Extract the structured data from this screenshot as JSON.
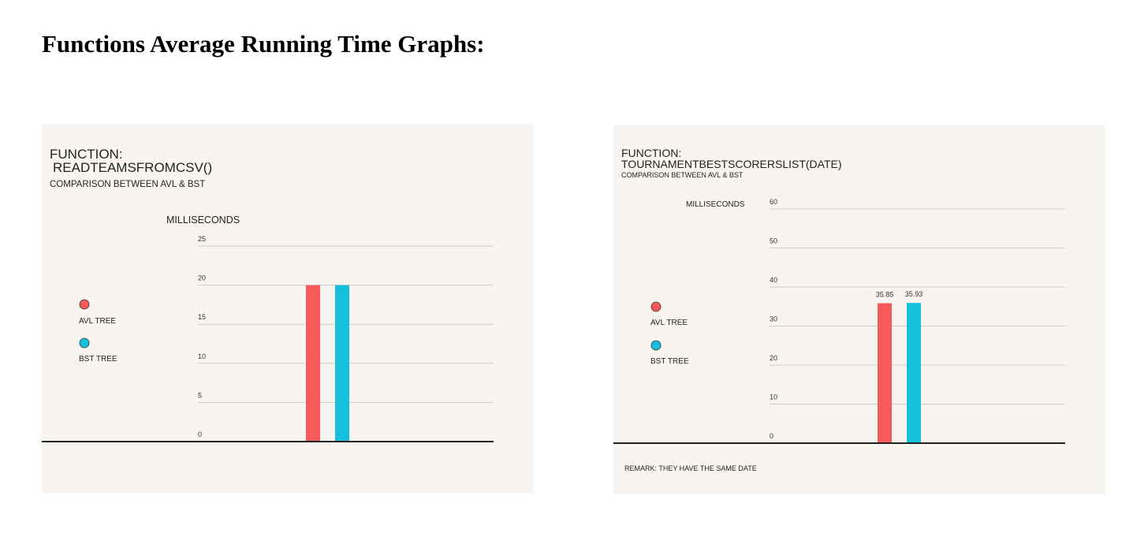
{
  "page": {
    "title": "Functions Average Running Time Graphs:"
  },
  "charts": [
    {
      "title_line1": "FUNCTION:",
      "title_line2": "READTEAMSFROMCSV()",
      "subtitle": "COMPARISON BETWEEN AVL & BST",
      "ylabel": "MILLISECONDS",
      "legend": [
        "AVL TREE",
        "BST TREE"
      ],
      "remark": ""
    },
    {
      "title_line1": "FUNCTION:",
      "title_line2": "TOURNAMENTBESTSCORERSLIST(DATE)",
      "subtitle": "COMPARISON BETWEEN AVL & BST",
      "ylabel": "MILLISECONDS",
      "legend": [
        "AVL TREE",
        "BST TREE"
      ],
      "remark": "REMARK: THEY HAVE THE  SAME DATE"
    }
  ],
  "colors": {
    "avl": "#f75a5a",
    "bst": "#16c0dd",
    "panel_bg": "#f8f5f0",
    "grid": "#d0ccc6",
    "axis": "#222222"
  },
  "chart_data": [
    {
      "type": "bar",
      "title": "FUNCTION: READTEAMSFROMCSV()",
      "subtitle": "COMPARISON BETWEEN AVL & BST",
      "ylabel": "MILLISECONDS",
      "ylim": [
        0,
        25
      ],
      "yticks": [
        0,
        5,
        10,
        15,
        20,
        25
      ],
      "categories": [
        "AVL TREE",
        "BST TREE"
      ],
      "values": [
        20,
        20
      ],
      "data_labels": false,
      "grid": true,
      "legend_position": "left"
    },
    {
      "type": "bar",
      "title": "FUNCTION: TOURNAMENTBESTSCORERSLIST(DATE)",
      "subtitle": "COMPARISON BETWEEN AVL & BST",
      "ylabel": "MILLISECONDS",
      "ylim": [
        0,
        60
      ],
      "yticks": [
        0,
        10,
        20,
        30,
        40,
        50,
        60
      ],
      "categories": [
        "AVL TREE",
        "BST TREE"
      ],
      "values": [
        35.85,
        35.93
      ],
      "data_labels": true,
      "grid": true,
      "legend_position": "left"
    }
  ]
}
